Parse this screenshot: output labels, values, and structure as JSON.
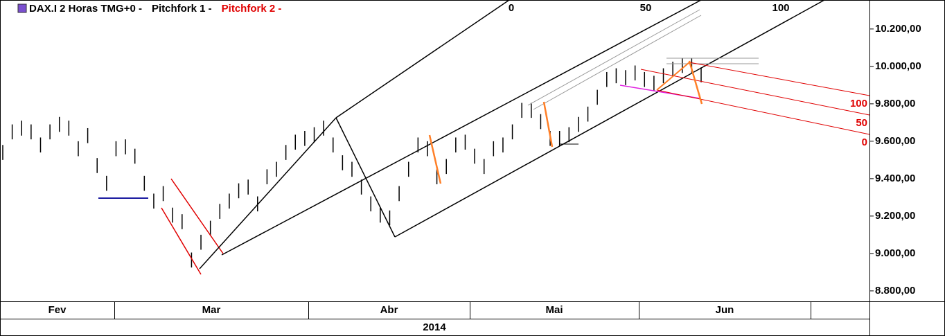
{
  "chart_data": {
    "type": "ohlc",
    "header": [
      "DAX.I 2 Horas TMG+0  -",
      "Pitchfork 1  -",
      "Pitchfork 2 -"
    ],
    "header_colors": [
      "#000000",
      "#000000",
      "#e00000"
    ],
    "high": [
      9580,
      9690,
      9710,
      9690,
      9620,
      9690,
      9730,
      9710,
      9600,
      9670,
      9510,
      9415,
      9600,
      9610,
      9560,
      9415,
      9320,
      9360,
      9245,
      9210,
      9005,
      9100,
      9175,
      9265,
      9320,
      9375,
      9395,
      9305,
      9450,
      9490,
      9580,
      9635,
      9655,
      9675,
      9710,
      9620,
      9525,
      9490,
      9395,
      9305,
      9245,
      9230,
      9360,
      9490,
      9620,
      9600,
      9450,
      9505,
      9620,
      9635,
      9560,
      9505,
      9600,
      9620,
      9690,
      9805,
      9805,
      9745,
      9655,
      9655,
      9675,
      9730,
      9785,
      9875,
      9970,
      9990,
      9980,
      10005,
      9970,
      9950,
      9990,
      10025,
      10045,
      10045,
      9995
    ],
    "low": [
      9500,
      9610,
      9630,
      9610,
      9540,
      9610,
      9650,
      9630,
      9520,
      9590,
      9430,
      9335,
      9520,
      9530,
      9480,
      9335,
      9240,
      9280,
      9165,
      9130,
      8925,
      9020,
      9095,
      9185,
      9240,
      9295,
      9315,
      9225,
      9370,
      9410,
      9500,
      9555,
      9575,
      9595,
      9630,
      9540,
      9445,
      9410,
      9315,
      9225,
      9165,
      9150,
      9280,
      9410,
      9540,
      9520,
      9370,
      9425,
      9540,
      9555,
      9480,
      9425,
      9520,
      9540,
      9610,
      9725,
      9725,
      9665,
      9575,
      9575,
      9595,
      9650,
      9705,
      9795,
      9890,
      9910,
      9900,
      9925,
      9890,
      9870,
      9910,
      9945,
      9965,
      9965,
      9915
    ],
    "color": "#000000",
    "ylim": [
      8744,
      10355
    ],
    "yticks": [
      {
        "value": 8800,
        "label": "8.800,00"
      },
      {
        "value": 9000,
        "label": "9.000,00"
      },
      {
        "value": 9200,
        "label": "9.200,00"
      },
      {
        "value": 9400,
        "label": "9.400,00"
      },
      {
        "value": 9600,
        "label": "9.600,00"
      },
      {
        "value": 9800,
        "label": "9.800,00"
      },
      {
        "value": 10000,
        "label": "10.000,00"
      },
      {
        "value": 10200,
        "label": "10.200,00"
      }
    ],
    "months": [
      "Fev",
      "Mar",
      "Abr",
      "Mai",
      "Jun"
    ],
    "year": "2014",
    "fib_top": [
      "0",
      "50",
      "100"
    ],
    "fib_right": [
      "100",
      "50",
      "0"
    ]
  }
}
